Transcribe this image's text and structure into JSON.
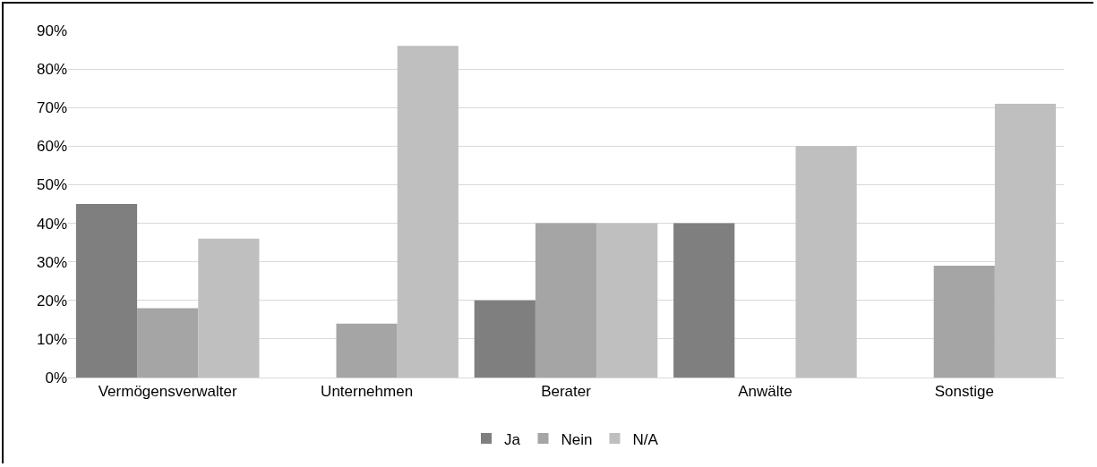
{
  "chart_data": {
    "type": "bar",
    "categories": [
      "Vermögensverwalter",
      "Unternehmen",
      "Berater",
      "Anwälte",
      "Sonstige"
    ],
    "series": [
      {
        "name": "Ja",
        "color": "#7f7f7f",
        "values": [
          45,
          0,
          20,
          40,
          0
        ]
      },
      {
        "name": "Nein",
        "color": "#a5a5a5",
        "values": [
          18,
          14,
          40,
          0,
          29
        ]
      },
      {
        "name": "N/A",
        "color": "#bfbfbf",
        "values": [
          36,
          86,
          40,
          60,
          71
        ]
      }
    ],
    "ylim": [
      0,
      90
    ],
    "yticks": [
      {
        "value": 0,
        "label": "0%"
      },
      {
        "value": 10,
        "label": "10%"
      },
      {
        "value": 20,
        "label": "20%"
      },
      {
        "value": 30,
        "label": "30%"
      },
      {
        "value": 40,
        "label": "40%"
      },
      {
        "value": 50,
        "label": "50%"
      },
      {
        "value": 60,
        "label": "60%"
      },
      {
        "value": 70,
        "label": "70%"
      },
      {
        "value": 80,
        "label": "80%"
      },
      {
        "value": 90,
        "label": "90%"
      }
    ],
    "grid": "y",
    "legend": "bottom"
  }
}
